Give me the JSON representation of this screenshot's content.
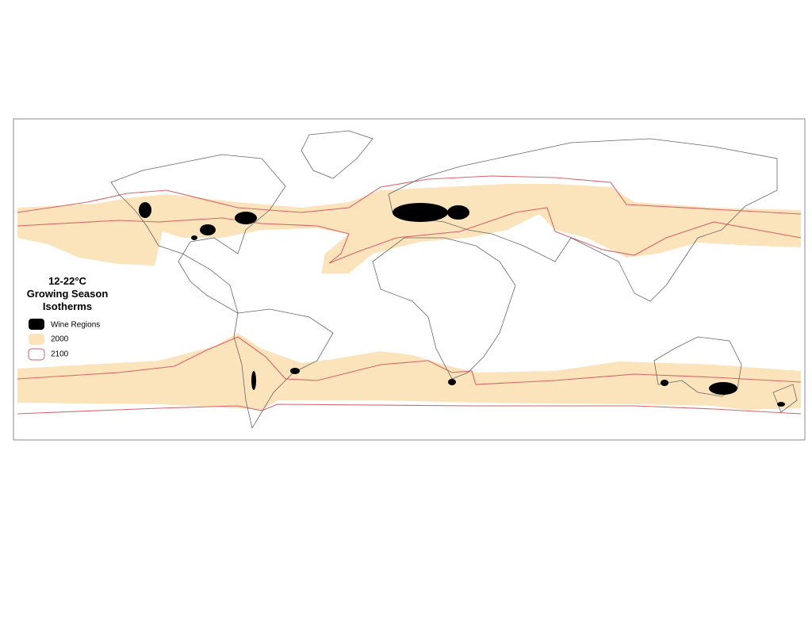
{
  "legend": {
    "title": [
      "12-22°C",
      "Growing Season",
      "Isotherms"
    ],
    "items": [
      {
        "label": "Wine Regions"
      },
      {
        "label": "2000"
      },
      {
        "label": "2100"
      }
    ]
  }
}
